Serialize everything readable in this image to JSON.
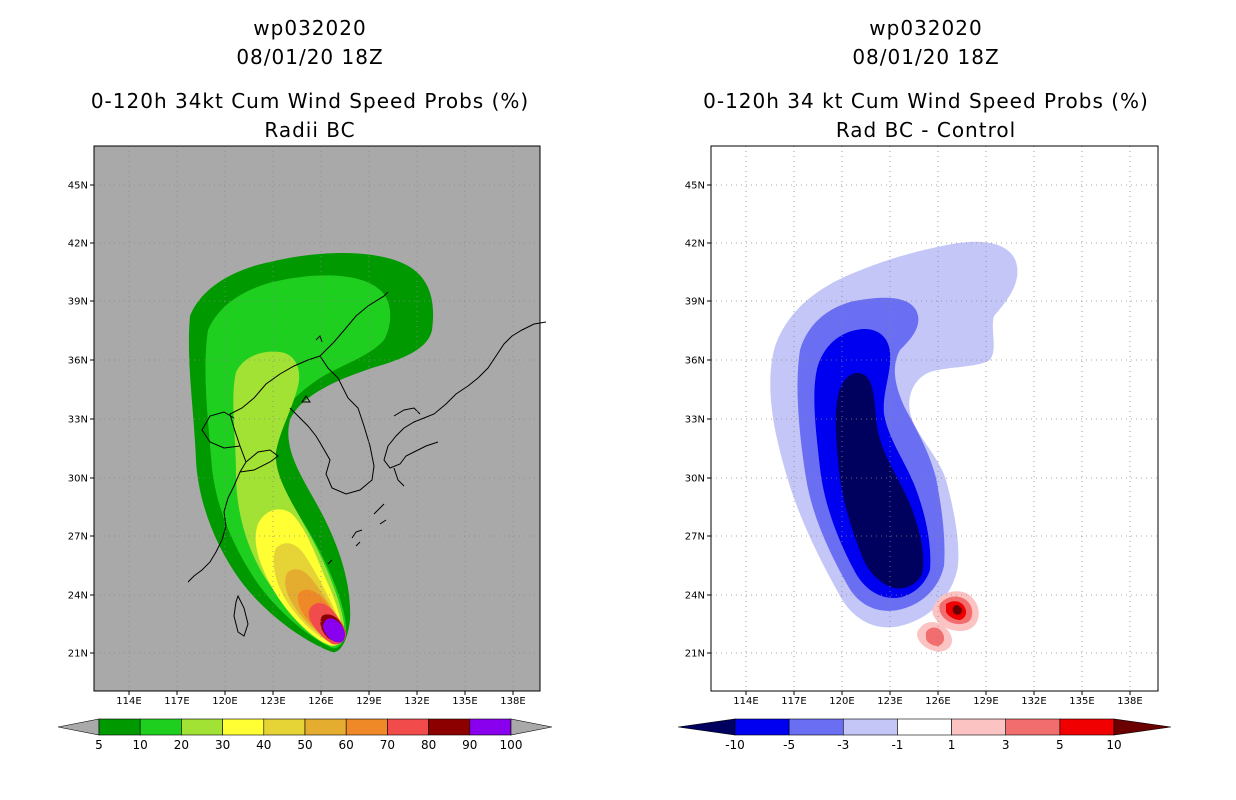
{
  "panels": [
    {
      "id": "left",
      "storm": "wp032020",
      "datetime": "08/01/20 18Z",
      "product": "0-120h 34kt Cum Wind Speed Probs (%)",
      "subtitle": "Radii BC",
      "background": "#a9a9a9",
      "colorbar": {
        "levels": [
          "5",
          "10",
          "20",
          "30",
          "40",
          "50",
          "60",
          "70",
          "80",
          "90",
          "100"
        ],
        "colors": [
          "#009900",
          "#1fcf1f",
          "#a2e234",
          "#ffff33",
          "#e6d437",
          "#e5ad2f",
          "#ef8927",
          "#f24b4b",
          "#8c0000",
          "#8800ee"
        ],
        "end_colors": [
          "#a9a9a9",
          "#a9a9a9"
        ]
      }
    },
    {
      "id": "right",
      "storm": "wp032020",
      "datetime": "08/01/20 18Z",
      "product": "0-120h 34 kt Cum Wind Speed Probs (%)",
      "subtitle": "Rad BC - Control",
      "background": "#ffffff",
      "colorbar": {
        "levels": [
          "-10",
          "-5",
          "-3",
          "-1",
          "1",
          "3",
          "5",
          "10"
        ],
        "colors": [
          "#0000f0",
          "#6a6ef2",
          "#c3c6f7",
          "#ffffff",
          "#fcc3c3",
          "#f26d6d",
          "#f00000"
        ],
        "end_colors": [
          "#00005f",
          "#6b0000"
        ]
      }
    }
  ],
  "axes": {
    "lat_labels": [
      "45N",
      "42N",
      "39N",
      "36N",
      "33N",
      "30N",
      "27N",
      "24N",
      "21N"
    ],
    "lon_labels": [
      "114E",
      "117E",
      "120E",
      "123E",
      "126E",
      "129E",
      "132E",
      "135E",
      "138E"
    ]
  }
}
